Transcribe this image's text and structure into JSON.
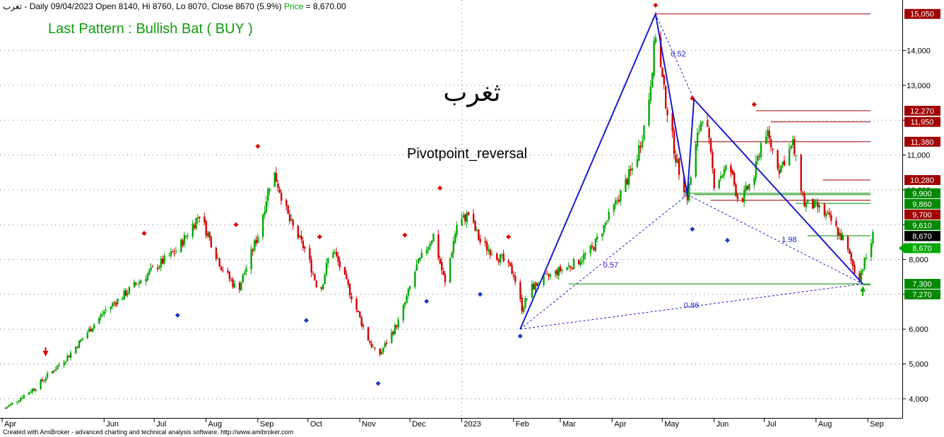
{
  "header": {
    "symbol": "ثغرب",
    "info": " - Daily 09/04/2023 Open 8140, Hi 8760, Lo 8070, Close 8670 (5.9%)",
    "price_label": "Price",
    "price_value": " = 8,670.00"
  },
  "pattern_label": "Last Pattern : Bullish Bat ( BUY )",
  "watermark": "ثغرب",
  "indicator_label": "Pivotpoint_reversal",
  "footer": "Created with AmiBroker - advanced charting and technical analysis software. http://www.amibroker.com",
  "colors": {
    "up_candle": "#00a800",
    "down_candle": "#d40000",
    "pattern_line": "#1a1acc",
    "resistance": "#a00000",
    "support": "#008800",
    "pattern_text": "#0f9d0f",
    "price_box": "#000000"
  },
  "chart_data": {
    "type": "candlestick",
    "yaxis": {
      "ticks": [
        "4,000",
        "5,000",
        "6,000",
        "7,000",
        "8,000",
        "9,000",
        "10,000",
        "11,000",
        "12,000",
        "13,000",
        "14,000"
      ],
      "range": [
        3450,
        15450
      ]
    },
    "xaxis": {
      "ticks": [
        "Apr",
        "Jun",
        "Jul",
        "Aug",
        "Sep",
        "Oct",
        "Nov",
        "Dec",
        "2023",
        "Feb",
        "Mar",
        "Apr",
        "May",
        "Jun",
        "Jul",
        "Aug",
        "Sep"
      ],
      "range": [
        "2022-04-01",
        "2023-09-06"
      ]
    },
    "price_path": [
      [
        "2022-04-02",
        3700
      ],
      [
        "2022-04-20",
        4300
      ],
      [
        "2022-05-10",
        5200
      ],
      [
        "2022-06-01",
        6500
      ],
      [
        "2022-06-25",
        7500
      ],
      [
        "2022-07-15",
        8300
      ],
      [
        "2022-07-28",
        9300
      ],
      [
        "2022-08-10",
        7800
      ],
      [
        "2022-08-20",
        7100
      ],
      [
        "2022-09-01",
        8700
      ],
      [
        "2022-09-10",
        10600
      ],
      [
        "2022-09-20",
        9100
      ],
      [
        "2022-09-30",
        8200
      ],
      [
        "2022-10-08",
        7000
      ],
      [
        "2022-10-15",
        8400
      ],
      [
        "2022-10-25",
        7200
      ],
      [
        "2022-11-05",
        5800
      ],
      [
        "2022-11-12",
        5200
      ],
      [
        "2022-11-25",
        6300
      ],
      [
        "2022-12-05",
        7800
      ],
      [
        "2022-12-15",
        8700
      ],
      [
        "2022-12-22",
        7300
      ],
      [
        "2022-12-29",
        9000
      ],
      [
        "2023-01-05",
        9300
      ],
      [
        "2023-01-12",
        8500
      ],
      [
        "2023-01-25",
        8000
      ],
      [
        "2023-02-01",
        7600
      ],
      [
        "2023-02-06",
        6600
      ],
      [
        "2023-02-12",
        7200
      ],
      [
        "2023-02-25",
        7600
      ],
      [
        "2023-03-10",
        7900
      ],
      [
        "2023-03-20",
        8300
      ],
      [
        "2023-04-01",
        9400
      ],
      [
        "2023-04-15",
        10800
      ],
      [
        "2023-04-22",
        12200
      ],
      [
        "2023-04-27",
        14500
      ],
      [
        "2023-05-02",
        12800
      ],
      [
        "2023-05-10",
        10700
      ],
      [
        "2023-05-16",
        9800
      ],
      [
        "2023-05-22",
        11500
      ],
      [
        "2023-05-26",
        12400
      ],
      [
        "2023-06-01",
        10200
      ],
      [
        "2023-06-10",
        10700
      ],
      [
        "2023-06-16",
        9600
      ],
      [
        "2023-06-25",
        10400
      ],
      [
        "2023-07-01",
        11800
      ],
      [
        "2023-07-10",
        10600
      ],
      [
        "2023-07-18",
        11300
      ],
      [
        "2023-07-25",
        9600
      ],
      [
        "2023-08-02",
        9500
      ],
      [
        "2023-08-10",
        9100
      ],
      [
        "2023-08-18",
        8500
      ],
      [
        "2023-08-26",
        7400
      ],
      [
        "2023-09-01",
        8200
      ],
      [
        "2023-09-04",
        8670
      ]
    ],
    "pivots_high": [
      [
        "2022-06-25",
        8750
      ],
      [
        "2022-08-19",
        9000
      ],
      [
        "2022-09-01",
        11250
      ],
      [
        "2022-10-08",
        8650
      ],
      [
        "2022-11-28",
        8700
      ],
      [
        "2022-12-19",
        10050
      ],
      [
        "2023-01-29",
        8650
      ],
      [
        "2023-04-27",
        15300
      ],
      [
        "2023-05-19",
        12630
      ],
      [
        "2023-06-25",
        12450
      ]
    ],
    "pivots_low": [
      [
        "2022-07-15",
        6400
      ],
      [
        "2022-09-30",
        6250
      ],
      [
        "2022-11-12",
        4440
      ],
      [
        "2022-12-11",
        6800
      ],
      [
        "2023-01-12",
        7000
      ],
      [
        "2023-02-05",
        5800
      ],
      [
        "2023-05-19",
        8870
      ],
      [
        "2023-06-09",
        8550
      ]
    ],
    "pattern": {
      "name": "Bullish Bat",
      "X": [
        "2023-02-05",
        6000
      ],
      "A": [
        "2023-04-27",
        15050
      ],
      "B": [
        "2023-05-16",
        9860
      ],
      "C": [
        "2023-05-20",
        12600
      ],
      "D": [
        "2023-08-29",
        7300
      ],
      "ratios": [
        "0.52",
        "0.57",
        "1.98",
        "0.86"
      ]
    },
    "resistance_levels": [
      {
        "value": 15050,
        "label": "15,050"
      },
      {
        "value": 12270,
        "label": "12,270"
      },
      {
        "value": 11950,
        "label": "11,950"
      },
      {
        "value": 11380,
        "label": "11,380"
      },
      {
        "value": 10280,
        "label": "10,280"
      },
      {
        "value": 9700,
        "label": "9,700"
      }
    ],
    "support_levels": [
      {
        "value": 9900,
        "label": "9,900"
      },
      {
        "value": 9860,
        "label": "9,860"
      },
      {
        "value": 9610,
        "label": "9,610"
      },
      {
        "value": 8680,
        "label": "8,680"
      },
      {
        "value": 7300,
        "label": "7,300"
      },
      {
        "value": 7270,
        "label": "7,270"
      }
    ],
    "last_price": {
      "value": 8670,
      "label": "8,670"
    }
  }
}
